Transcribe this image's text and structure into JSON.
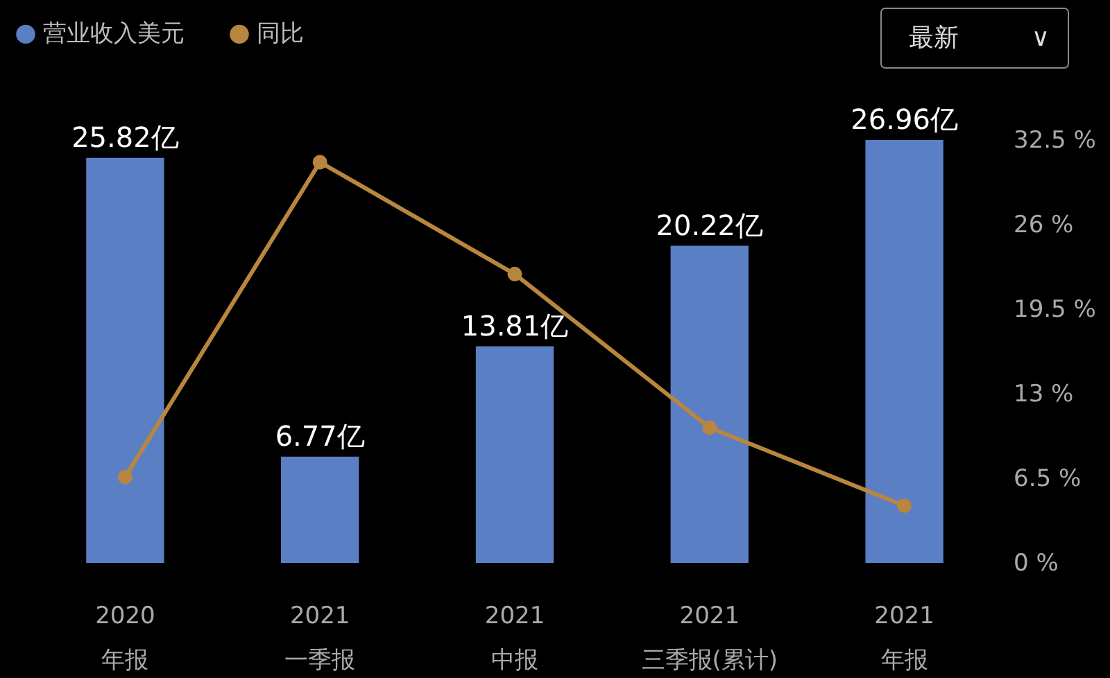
{
  "chart_data": {
    "type": "bar",
    "categories": [
      "2020\n年报",
      "2021\n一季报",
      "2021\n中报",
      "2021\n三季报(累计)",
      "2021\n年报"
    ],
    "series": [
      {
        "name": "营业收入美元",
        "axis": "y2",
        "color": "#5b7fc4",
        "values": [
          25.82,
          6.77,
          13.81,
          20.22,
          26.96
        ],
        "value_labels": [
          "25.82亿",
          "6.77亿",
          "13.81亿",
          "20.22亿",
          "26.96亿"
        ]
      },
      {
        "name": "同比",
        "type": "line",
        "color": "#b8863e",
        "values": [
          6.6,
          30.8,
          22.2,
          10.4,
          4.4
        ]
      }
    ],
    "ylim": [
      0,
      32.5
    ],
    "yticks": [
      {
        "value": 0,
        "label": "0 %"
      },
      {
        "value": 6.5,
        "label": "6.5 %"
      },
      {
        "value": 13,
        "label": "13 %"
      },
      {
        "value": 19.5,
        "label": "19.5 %"
      },
      {
        "value": 26,
        "label": "26 %"
      },
      {
        "value": 32.5,
        "label": "32.5 %"
      }
    ],
    "legend": "top left",
    "marker": "circle",
    "grid": false,
    "annotations": [
      "最新",
      "∨"
    ]
  }
}
